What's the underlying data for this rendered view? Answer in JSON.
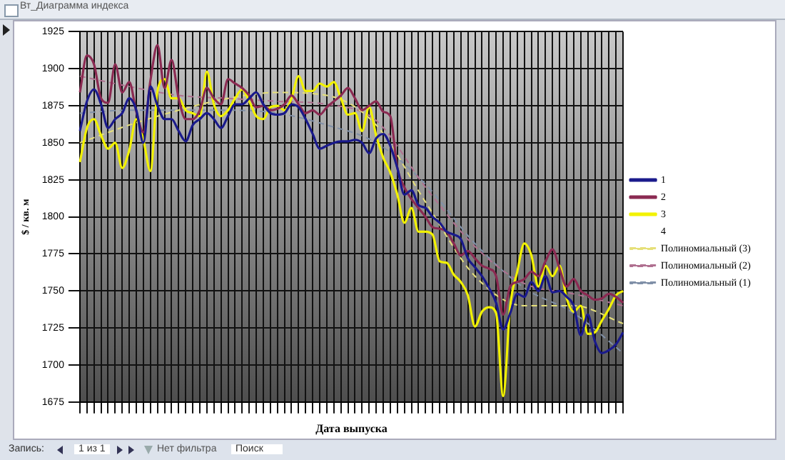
{
  "chart_data": {
    "type": "line",
    "xlabel": "Дата выпуска",
    "ylabel": "$ / кв. м",
    "annotations": [
      "Вт_Диаграмма индекса",
      "Запись:",
      "1 из 1",
      "Нет фильтра",
      "Поиск"
    ],
    "categories": [
      null,
      null,
      null,
      null,
      null,
      null,
      null,
      null,
      null,
      null,
      null,
      null,
      null,
      null,
      null,
      null,
      null,
      null,
      null,
      null,
      null,
      null,
      null,
      null,
      null,
      null,
      null,
      null,
      null,
      null,
      null,
      null,
      null,
      null,
      null,
      null,
      null,
      null,
      null,
      null,
      null,
      null,
      null,
      null,
      null,
      null,
      null,
      null,
      null,
      null,
      null,
      null,
      null,
      null,
      null,
      null,
      null,
      null,
      null,
      null,
      null,
      null,
      null,
      null,
      null,
      null,
      null,
      null,
      null,
      null,
      null,
      null,
      null,
      null,
      null,
      null,
      null,
      null
    ],
    "ylim": [
      1675,
      1925
    ],
    "yticks": [
      1675,
      1700,
      1725,
      1750,
      1775,
      1800,
      1825,
      1850,
      1875,
      1900,
      1925
    ],
    "grid": true,
    "legend": "right",
    "marker": "none",
    "series": [
      {
        "name": "1",
        "color": "#1a1a8c",
        "line_style": "solid",
        "values": [
          1858,
          1878,
          1886,
          1876,
          1860,
          1866,
          1870,
          1880,
          1872,
          1850,
          1888,
          1875,
          1866,
          1866,
          1858,
          1851,
          1862,
          1866,
          1870,
          1866,
          1860,
          1868,
          1876,
          1876,
          1880,
          1884,
          1876,
          1870,
          1869,
          1870,
          1876,
          1874,
          1866,
          1856,
          1846,
          1848,
          1850,
          1851,
          1851,
          1852,
          1850,
          1843,
          1853,
          1856,
          1848,
          1833,
          1815,
          1818,
          1808,
          1806,
          1800,
          1796,
          1790,
          1788,
          1785,
          1772,
          1766,
          1760,
          1752,
          1742,
          1724,
          1735,
          1748,
          1746,
          1756,
          1750,
          1760,
          1749,
          1750,
          1746,
          1740,
          1720,
          1734,
          1716,
          1708,
          1710,
          1714,
          1722
        ]
      },
      {
        "name": "2",
        "color": "#8b2a52",
        "line_style": "solid",
        "values": [
          1884,
          1909,
          1903,
          1880,
          1877,
          1903,
          1884,
          1891,
          1871,
          1857,
          1892,
          1916,
          1887,
          1906,
          1880,
          1866,
          1866,
          1872,
          1887,
          1880,
          1876,
          1893,
          1890,
          1887,
          1882,
          1874,
          1875,
          1872,
          1873,
          1876,
          1882,
          1876,
          1870,
          1872,
          1869,
          1874,
          1878,
          1882,
          1887,
          1880,
          1872,
          1875,
          1878,
          1871,
          1868,
          1833,
          1820,
          1812,
          1806,
          1800,
          1793,
          1792,
          1790,
          1782,
          1774,
          1777,
          1772,
          1767,
          1765,
          1760,
          1734,
          1753,
          1756,
          1758,
          1763,
          1760,
          1770,
          1778,
          1765,
          1753,
          1758,
          1750,
          1747,
          1744,
          1745,
          1748,
          1746,
          1742
        ]
      },
      {
        "name": "3",
        "color": "#f2f200",
        "line_style": "solid",
        "values": [
          1837,
          1860,
          1866,
          1855,
          1846,
          1850,
          1833,
          1845,
          1866,
          1852,
          1831,
          1885,
          1893,
          1880,
          1880,
          1872,
          1870,
          1868,
          1898,
          1876,
          1868,
          1872,
          1880,
          1886,
          1878,
          1868,
          1866,
          1874,
          1875,
          1872,
          1880,
          1895,
          1885,
          1885,
          1890,
          1888,
          1891,
          1880,
          1869,
          1870,
          1858,
          1874,
          1855,
          1840,
          1830,
          1815,
          1796,
          1806,
          1790,
          1790,
          1788,
          1770,
          1769,
          1761,
          1756,
          1747,
          1726,
          1736,
          1739,
          1735,
          1679,
          1740,
          1763,
          1782,
          1774,
          1753,
          1767,
          1760,
          1767,
          1745,
          1736,
          1740,
          1721,
          1722,
          1730,
          1738,
          1747,
          1750
        ]
      },
      {
        "name": "4",
        "line_style": "solid",
        "values": [
          null,
          null,
          null,
          null,
          null,
          null,
          null,
          null,
          null,
          null,
          null,
          null,
          null,
          null,
          null,
          null,
          null,
          null,
          null,
          null,
          null,
          null,
          null,
          null,
          null,
          null,
          null,
          null,
          null,
          null,
          null,
          null,
          null,
          null,
          null,
          null,
          null,
          null,
          null,
          null,
          null,
          null,
          null,
          null,
          null,
          null,
          null,
          null,
          null,
          null,
          null,
          null,
          null,
          null,
          null,
          null,
          null,
          null,
          null,
          null,
          null,
          null,
          null,
          null,
          null,
          null,
          null,
          null,
          null,
          null,
          null,
          null,
          null,
          null,
          null,
          null,
          null,
          null
        ]
      },
      {
        "name": "Полиномиальный (3)",
        "color": "#e6e07a",
        "line_style": "dashed",
        "values": [
          1850,
          null,
          null,
          null,
          null,
          null,
          null,
          1862,
          null,
          null,
          null,
          null,
          null,
          null,
          1872,
          null,
          null,
          null,
          null,
          null,
          null,
          1880,
          null,
          null,
          null,
          null,
          null,
          null,
          1884,
          null,
          null,
          null,
          null,
          null,
          null,
          1882,
          null,
          null,
          null,
          null,
          null,
          null,
          1862,
          null,
          null,
          null,
          null,
          null,
          null,
          1810,
          null,
          null,
          null,
          null,
          null,
          null,
          1760,
          null,
          null,
          null,
          null,
          null,
          null,
          1740,
          null,
          null,
          null,
          null,
          null,
          null,
          1740,
          null,
          null,
          null,
          null,
          null,
          null,
          1728
        ]
      },
      {
        "name": "Полиномиальный (2)",
        "color": "#b07090",
        "line_style": "dashed",
        "values": [
          1895,
          null,
          null,
          null,
          null,
          null,
          null,
          1888,
          null,
          null,
          null,
          null,
          null,
          null,
          1882,
          null,
          null,
          null,
          null,
          null,
          null,
          1880,
          null,
          null,
          null,
          null,
          null,
          null,
          1878,
          null,
          null,
          null,
          null,
          null,
          null,
          1876,
          null,
          null,
          null,
          null,
          null,
          null,
          1865,
          null,
          null,
          null,
          null,
          null,
          null,
          1820,
          null,
          null,
          null,
          null,
          null,
          null,
          1780,
          null,
          null,
          null,
          null,
          null,
          null,
          1755,
          null,
          null,
          null,
          null,
          null,
          null,
          1748,
          null,
          null,
          null,
          null,
          null,
          null,
          1740
        ]
      },
      {
        "name": "Полиномиальный (1)",
        "color": "#8090a8",
        "line_style": "dashed",
        "values": [
          1870,
          null,
          null,
          null,
          null,
          null,
          null,
          1872,
          null,
          null,
          null,
          null,
          null,
          null,
          1872,
          null,
          null,
          null,
          null,
          null,
          null,
          1872,
          null,
          null,
          null,
          null,
          null,
          null,
          1870,
          null,
          null,
          null,
          null,
          null,
          null,
          1862,
          null,
          null,
          null,
          null,
          null,
          null,
          1850,
          null,
          null,
          null,
          null,
          null,
          null,
          1822,
          null,
          null,
          null,
          null,
          null,
          null,
          1782,
          null,
          null,
          null,
          null,
          null,
          null,
          1752,
          null,
          null,
          null,
          null,
          null,
          null,
          1735,
          null,
          null,
          null,
          null,
          null,
          null,
          1708
        ]
      }
    ]
  }
}
